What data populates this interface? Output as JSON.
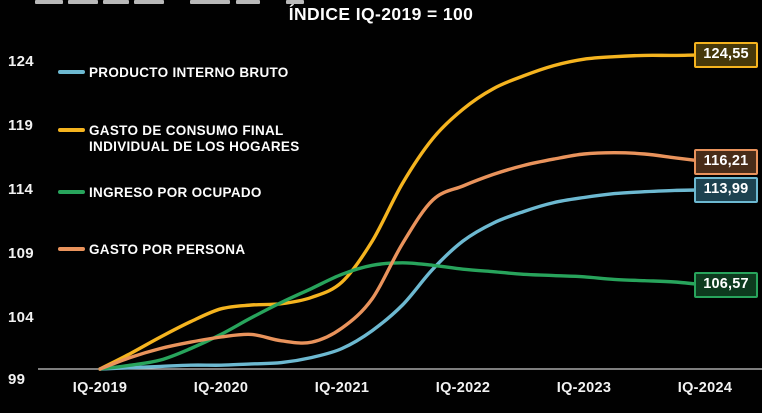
{
  "title": "ÍNDICE IQ-2019 = 100",
  "colors": {
    "background": "#010101",
    "text": "#fdfdfd",
    "axis_line": "#c9c9c9",
    "pib": "#6db9d1",
    "gasto_consumo": "#f5b41f",
    "ingreso_ocupado": "#28a45c",
    "gasto_persona": "#e9935c"
  },
  "legend": [
    {
      "label": "PRODUCTO INTERNO BRUTO",
      "series_key": "pib"
    },
    {
      "label": "GASTO DE CONSUMO FINAL\nINDIVIDUAL DE LOS HOGARES",
      "series_key": "gasto_consumo"
    },
    {
      "label": "INGRESO POR OCUPADO",
      "series_key": "ingreso_ocupado"
    },
    {
      "label": "GASTO POR PERSONA",
      "series_key": "gasto_persona"
    }
  ],
  "y_axis": {
    "ticks": [
      "124",
      "119",
      "114",
      "109",
      "104",
      "99"
    ]
  },
  "x_axis": {
    "ticks": [
      "IQ-2019",
      "IQ-2020",
      "IQ-2021",
      "IQ-2022",
      "IQ-2023",
      "IQ-2024"
    ]
  },
  "chart_data": {
    "type": "line",
    "title": "ÍNDICE IQ-2019 = 100",
    "x_tick_labels": [
      "IQ-2019",
      "IQ-2020",
      "IQ-2021",
      "IQ-2022",
      "IQ-2023",
      "IQ-2024"
    ],
    "x_unit": "quarters (21 points, IQ-2019 through IQ-2024)",
    "ylim": [
      99,
      126
    ],
    "grid": false,
    "legend_position": "upper-left",
    "series": [
      {
        "name": "PRODUCTO INTERNO BRUTO",
        "key": "pib",
        "color": "#6db9d1",
        "badge_bg": "#1d4250",
        "end_label": "113,99",
        "values": [
          100,
          100.1,
          100.2,
          100.3,
          100.3,
          100.4,
          100.5,
          100.9,
          101.6,
          103.0,
          105.0,
          107.8,
          110.0,
          111.4,
          112.3,
          113.0,
          113.4,
          113.7,
          113.85,
          113.95,
          113.99
        ]
      },
      {
        "name": "GASTO DE CONSUMO FINAL INDIVIDUAL DE LOS HOGARES",
        "key": "gasto_consumo",
        "color": "#f5b41f",
        "badge_bg": "#46380a",
        "end_label": "124,55",
        "values": [
          100,
          101.2,
          102.5,
          103.7,
          104.7,
          105.0,
          105.1,
          105.6,
          106.8,
          110.0,
          114.5,
          118.0,
          120.3,
          121.9,
          122.9,
          123.7,
          124.2,
          124.4,
          124.5,
          124.5,
          124.55
        ]
      },
      {
        "name": "INGRESO POR OCUPADO",
        "key": "ingreso_ocupado",
        "color": "#28a45c",
        "badge_bg": "#0d3a1e",
        "end_label": "106,57",
        "values": [
          100,
          100.3,
          100.7,
          101.6,
          102.7,
          104.0,
          105.2,
          106.3,
          107.4,
          108.1,
          108.3,
          108.1,
          107.8,
          107.6,
          107.4,
          107.3,
          107.2,
          107.0,
          106.9,
          106.8,
          106.57
        ]
      },
      {
        "name": "GASTO POR PERSONA",
        "key": "gasto_persona",
        "color": "#e9935c",
        "badge_bg": "#492d19",
        "end_label": "116,21",
        "values": [
          100,
          100.9,
          101.6,
          102.1,
          102.5,
          102.7,
          102.2,
          102.1,
          103.2,
          105.5,
          109.8,
          113.2,
          114.3,
          115.2,
          115.9,
          116.4,
          116.8,
          116.9,
          116.8,
          116.5,
          116.21
        ]
      }
    ]
  }
}
